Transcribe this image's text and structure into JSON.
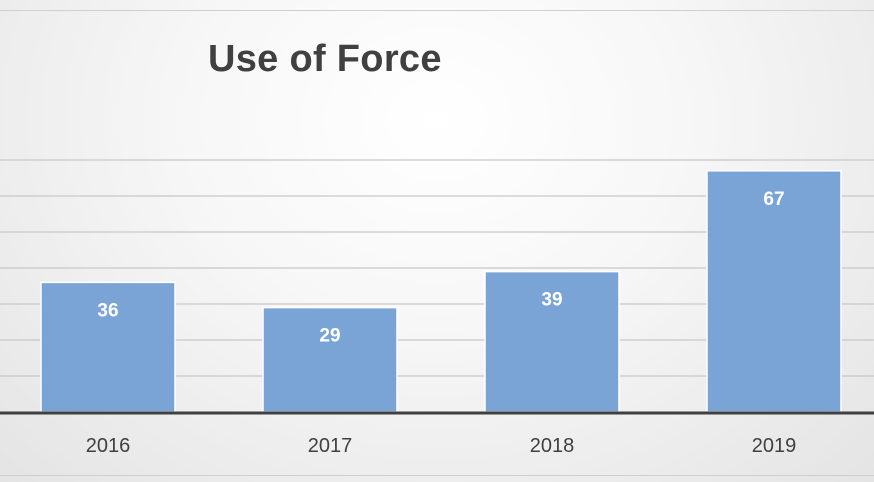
{
  "chart_data": {
    "type": "bar",
    "title": "Use of Force",
    "categories": [
      "2016",
      "2017",
      "2018",
      "2019"
    ],
    "values": [
      36,
      29,
      39,
      67
    ],
    "series": [
      {
        "values": [
          36,
          29,
          39,
          67
        ]
      }
    ],
    "xlabel": "",
    "ylabel": "",
    "ylim": [
      0,
      70
    ],
    "grid": true,
    "legend": "none",
    "data_labels": "inside-end",
    "colors": {
      "bar_fill": "#7ba4d6",
      "bar_stroke": "#ffffff",
      "gridline": "#c8c8c8",
      "axis": "#404040",
      "label": "#ffffff",
      "tick": "#404040"
    }
  }
}
